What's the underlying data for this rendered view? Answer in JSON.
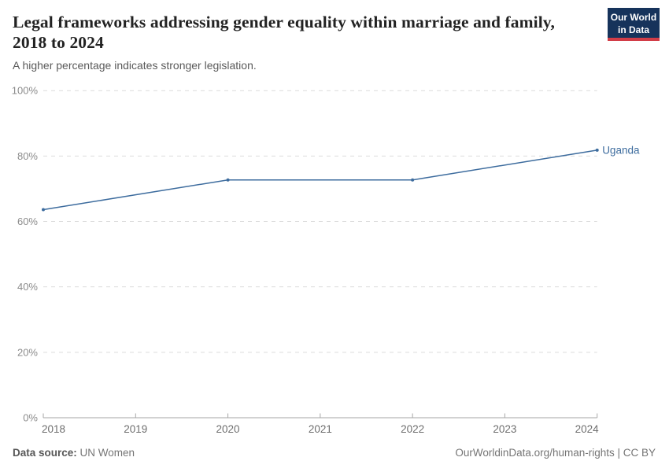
{
  "header": {
    "title": "Legal frameworks addressing gender equality within marriage and family, 2018 to 2024",
    "subtitle": "A higher percentage indicates stronger legislation.",
    "logo": {
      "line1": "Our World",
      "line2": "in Data",
      "bg_color": "#16335b",
      "accent_color": "#d23d47",
      "text_color": "#ffffff"
    }
  },
  "chart_data": {
    "type": "line",
    "title": "Legal frameworks addressing gender equality within marriage and family, 2018 to 2024",
    "subtitle": "A higher percentage indicates stronger legislation.",
    "xlabel": "",
    "ylabel": "",
    "xlim": [
      2018,
      2024
    ],
    "ylim": [
      0,
      100
    ],
    "grid": "horizontal-dashed",
    "legend_position": "end-of-line-label",
    "x_ticks": [
      {
        "label": "2018",
        "value": 2018
      },
      {
        "label": "2019",
        "value": 2019
      },
      {
        "label": "2020",
        "value": 2020
      },
      {
        "label": "2021",
        "value": 2021
      },
      {
        "label": "2022",
        "value": 2022
      },
      {
        "label": "2023",
        "value": 2023
      },
      {
        "label": "2024",
        "value": 2024
      }
    ],
    "y_ticks": [
      {
        "label": "0%",
        "value": 0
      },
      {
        "label": "20%",
        "value": 20
      },
      {
        "label": "40%",
        "value": 40
      },
      {
        "label": "60%",
        "value": 60
      },
      {
        "label": "80%",
        "value": 80
      },
      {
        "label": "100%",
        "value": 100
      }
    ],
    "series": [
      {
        "name": "Uganda",
        "color": "#3d6c9e",
        "points": [
          {
            "year": 2018,
            "value": 63.6
          },
          {
            "year": 2020,
            "value": 72.7
          },
          {
            "year": 2022,
            "value": 72.7
          },
          {
            "year": 2024,
            "value": 81.8
          }
        ]
      }
    ]
  },
  "footer": {
    "source_label": "Data source:",
    "source_value": " UN Women",
    "attribution": "OurWorldinData.org/human-rights | CC BY"
  }
}
